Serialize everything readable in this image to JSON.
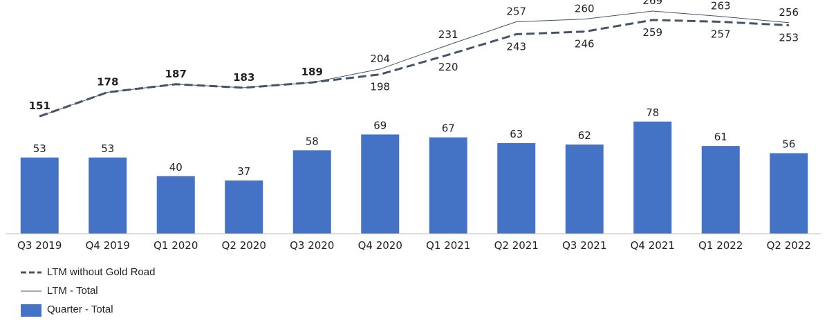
{
  "chart_data": {
    "type": "bar+line",
    "categories": [
      "Q3 2019",
      "Q4 2019",
      "Q1 2020",
      "Q2 2020",
      "Q3 2020",
      "Q4 2020",
      "Q1 2021",
      "Q2 2021",
      "Q3 2021",
      "Q4 2021",
      "Q1 2022",
      "Q2 2022"
    ],
    "series": [
      {
        "name": "Quarter - Total",
        "type": "bar",
        "color": "#4472c4",
        "values": [
          53,
          53,
          40,
          37,
          58,
          69,
          67,
          63,
          62,
          78,
          61,
          56
        ]
      },
      {
        "name": "LTM - Total",
        "type": "line",
        "style": "solid",
        "color": "#44546a",
        "values": [
          151,
          178,
          187,
          183,
          189,
          204,
          231,
          257,
          260,
          269,
          263,
          256
        ]
      },
      {
        "name": "LTM without Gold Road",
        "type": "line",
        "style": "dashed",
        "color": "#44546a",
        "values": [
          151,
          178,
          187,
          183,
          189,
          198,
          220,
          243,
          246,
          259,
          257,
          253
        ]
      }
    ],
    "legend_position": "bottom-left",
    "grid": false
  }
}
